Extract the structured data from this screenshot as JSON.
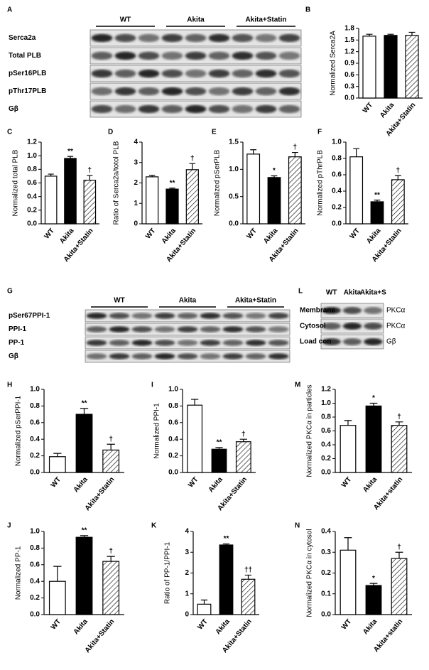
{
  "chart_data": [
    {
      "type": "bar",
      "panel": "B",
      "ylabel": "Normalized Serca2A",
      "categories": [
        "WT",
        "Akita",
        "Akita+Statin"
      ],
      "values": [
        1.6,
        1.62,
        1.62
      ],
      "errors": [
        0.05,
        0.03,
        0.08
      ],
      "annotations": [
        null,
        null,
        null
      ],
      "colors": [
        "#ffffff",
        "#000000",
        "#ffffff"
      ],
      "hatch": [
        false,
        false,
        true
      ],
      "ylim": [
        0,
        1.8
      ],
      "yticks": [
        {
          "value": 0,
          "label": "0.0"
        },
        0.3,
        0.6,
        0.9,
        1.2,
        1.5,
        1.8
      ]
    },
    {
      "type": "bar",
      "panel": "C",
      "ylabel": "Normalized total PLB",
      "categories": [
        "WT",
        "Akita",
        "Akita+Statin"
      ],
      "values": [
        0.7,
        0.96,
        0.64
      ],
      "errors": [
        0.03,
        0.03,
        0.07
      ],
      "annotations": [
        null,
        "**",
        "†"
      ],
      "colors": [
        "#ffffff",
        "#000000",
        "#ffffff"
      ],
      "hatch": [
        false,
        false,
        true
      ],
      "ylim": [
        0,
        1.2
      ],
      "yticks": [
        {
          "value": 0,
          "label": "0.0"
        },
        0.2,
        0.4,
        0.6,
        0.8,
        {
          "value": 1,
          "label": "1.0"
        },
        1.2
      ]
    },
    {
      "type": "bar",
      "panel": "D",
      "ylabel": "Ratio of Serca2a/totol PLB",
      "categories": [
        "WT",
        "Akita",
        "Akita+Statin"
      ],
      "values": [
        2.3,
        1.7,
        2.65
      ],
      "errors": [
        0.07,
        0.05,
        0.3
      ],
      "annotations": [
        null,
        "**",
        "†"
      ],
      "colors": [
        "#ffffff",
        "#000000",
        "#ffffff"
      ],
      "hatch": [
        false,
        false,
        true
      ],
      "ylim": [
        0,
        4
      ],
      "yticks": [
        0,
        1,
        2,
        3,
        4
      ]
    },
    {
      "type": "bar",
      "panel": "E",
      "ylabel": "Normalized pSerPLB",
      "categories": [
        "WT",
        "Akita",
        "Akita+Statin"
      ],
      "values": [
        1.28,
        0.85,
        1.23
      ],
      "errors": [
        0.08,
        0.03,
        0.08
      ],
      "annotations": [
        null,
        "*",
        "†"
      ],
      "colors": [
        "#ffffff",
        "#000000",
        "#ffffff"
      ],
      "hatch": [
        false,
        false,
        true
      ],
      "ylim": [
        0,
        1.5
      ],
      "yticks": [
        {
          "value": 0,
          "label": "0.0"
        },
        0.5,
        {
          "value": 1,
          "label": "1.0"
        },
        1.5
      ]
    },
    {
      "type": "bar",
      "panel": "F",
      "ylabel": "Normalized pThrPLB",
      "categories": [
        "WT",
        "Akita",
        "Akita+Statin"
      ],
      "values": [
        0.82,
        0.27,
        0.54
      ],
      "errors": [
        0.1,
        0.02,
        0.05
      ],
      "annotations": [
        null,
        "**",
        "†"
      ],
      "colors": [
        "#ffffff",
        "#000000",
        "#ffffff"
      ],
      "hatch": [
        false,
        false,
        true
      ],
      "ylim": [
        0,
        1
      ],
      "yticks": [
        {
          "value": 0,
          "label": "0.0"
        },
        0.2,
        0.4,
        0.6,
        0.8,
        {
          "value": 1,
          "label": "1.0"
        }
      ]
    },
    {
      "type": "bar",
      "panel": "H",
      "ylabel": "Normalized pSerPPI-1",
      "categories": [
        "WT",
        "Akita",
        "Akita+Statin"
      ],
      "values": [
        0.19,
        0.7,
        0.27
      ],
      "errors": [
        0.04,
        0.07,
        0.07
      ],
      "annotations": [
        null,
        "**",
        "†"
      ],
      "colors": [
        "#ffffff",
        "#000000",
        "#ffffff"
      ],
      "hatch": [
        false,
        false,
        true
      ],
      "ylim": [
        0,
        1
      ],
      "yticks": [
        {
          "value": 0,
          "label": "0.0"
        },
        0.2,
        0.4,
        0.6,
        0.8,
        {
          "value": 1,
          "label": "1.0"
        }
      ]
    },
    {
      "type": "bar",
      "panel": "I",
      "ylabel": "Normalized PPI-1",
      "categories": [
        "WT",
        "Akita",
        "Akita+Statin"
      ],
      "values": [
        0.81,
        0.28,
        0.37
      ],
      "errors": [
        0.07,
        0.02,
        0.03
      ],
      "annotations": [
        null,
        "**",
        "†"
      ],
      "colors": [
        "#ffffff",
        "#000000",
        "#ffffff"
      ],
      "hatch": [
        false,
        false,
        true
      ],
      "ylim": [
        0,
        1
      ],
      "yticks": [
        {
          "value": 0,
          "label": "0.0"
        },
        0.2,
        0.4,
        0.6,
        0.8,
        {
          "value": 1,
          "label": "1.0"
        }
      ]
    },
    {
      "type": "bar",
      "panel": "M",
      "ylabel": "Normalized PKCα in particles",
      "categories": [
        "WT",
        "Akita",
        "Akita+statin"
      ],
      "values": [
        0.68,
        0.96,
        0.68
      ],
      "errors": [
        0.07,
        0.04,
        0.05
      ],
      "annotations": [
        null,
        "*",
        "†"
      ],
      "colors": [
        "#ffffff",
        "#000000",
        "#ffffff"
      ],
      "hatch": [
        false,
        false,
        true
      ],
      "ylim": [
        0,
        1.2
      ],
      "yticks": [
        {
          "value": 0,
          "label": "0.0"
        },
        0.2,
        0.4,
        0.6,
        0.8,
        {
          "value": 1,
          "label": "1.0"
        },
        1.2
      ]
    },
    {
      "type": "bar",
      "panel": "J",
      "ylabel": "Normalized PP-1",
      "categories": [
        "WT",
        "Akita",
        "Akita+Statin"
      ],
      "values": [
        0.4,
        0.93,
        0.64
      ],
      "errors": [
        0.18,
        0.02,
        0.06
      ],
      "annotations": [
        null,
        "**",
        "†"
      ],
      "colors": [
        "#ffffff",
        "#000000",
        "#ffffff"
      ],
      "hatch": [
        false,
        false,
        true
      ],
      "ylim": [
        0,
        1
      ],
      "yticks": [
        {
          "value": 0,
          "label": "0.0"
        },
        0.2,
        0.4,
        0.6,
        0.8,
        {
          "value": 1,
          "label": "1.0"
        }
      ]
    },
    {
      "type": "bar",
      "panel": "K",
      "ylabel": "Ratio of PP-1/PPI-1",
      "categories": [
        "WT",
        "Akita",
        "Akita+Statin"
      ],
      "values": [
        0.5,
        3.35,
        1.7
      ],
      "errors": [
        0.2,
        0.05,
        0.2
      ],
      "annotations": [
        null,
        "**",
        "††"
      ],
      "colors": [
        "#ffffff",
        "#000000",
        "#ffffff"
      ],
      "hatch": [
        false,
        false,
        true
      ],
      "ylim": [
        0,
        4
      ],
      "yticks": [
        0,
        1,
        2,
        3,
        4
      ]
    },
    {
      "type": "bar",
      "panel": "N",
      "ylabel": "Normalized PKCα in cytosol",
      "categories": [
        "WT",
        "Akita",
        "Akita+statin"
      ],
      "values": [
        0.31,
        0.14,
        0.27
      ],
      "errors": [
        0.06,
        0.01,
        0.03
      ],
      "annotations": [
        null,
        "*",
        "†"
      ],
      "colors": [
        "#ffffff",
        "#000000",
        "#ffffff"
      ],
      "hatch": [
        false,
        false,
        true
      ],
      "ylim": [
        0,
        0.4
      ],
      "yticks": [
        {
          "value": 0,
          "label": "0.0"
        },
        0.1,
        0.2,
        0.3,
        0.4
      ]
    }
  ],
  "blots": [
    {
      "panel": "A",
      "groups": [
        "WT",
        "Akita",
        "Akita+Statin"
      ],
      "rows": [
        "Serca2a",
        "Total PLB",
        "pSer16PLB",
        "pThr17PLB",
        "Gβ"
      ]
    },
    {
      "panel": "G",
      "groups": [
        "WT",
        "Akita",
        "Akita+Statin"
      ],
      "rows": [
        "pSer67PPI-1",
        "PPI-1",
        "PP-1",
        "Gβ"
      ]
    },
    {
      "panel": "L",
      "groups": [
        "WT",
        "Akita",
        "Akita+S"
      ],
      "rows": [
        "Membrane",
        "Cytosol",
        "Load con"
      ],
      "right_labels": [
        "PKCα",
        "PKCα",
        "Gβ"
      ]
    }
  ]
}
